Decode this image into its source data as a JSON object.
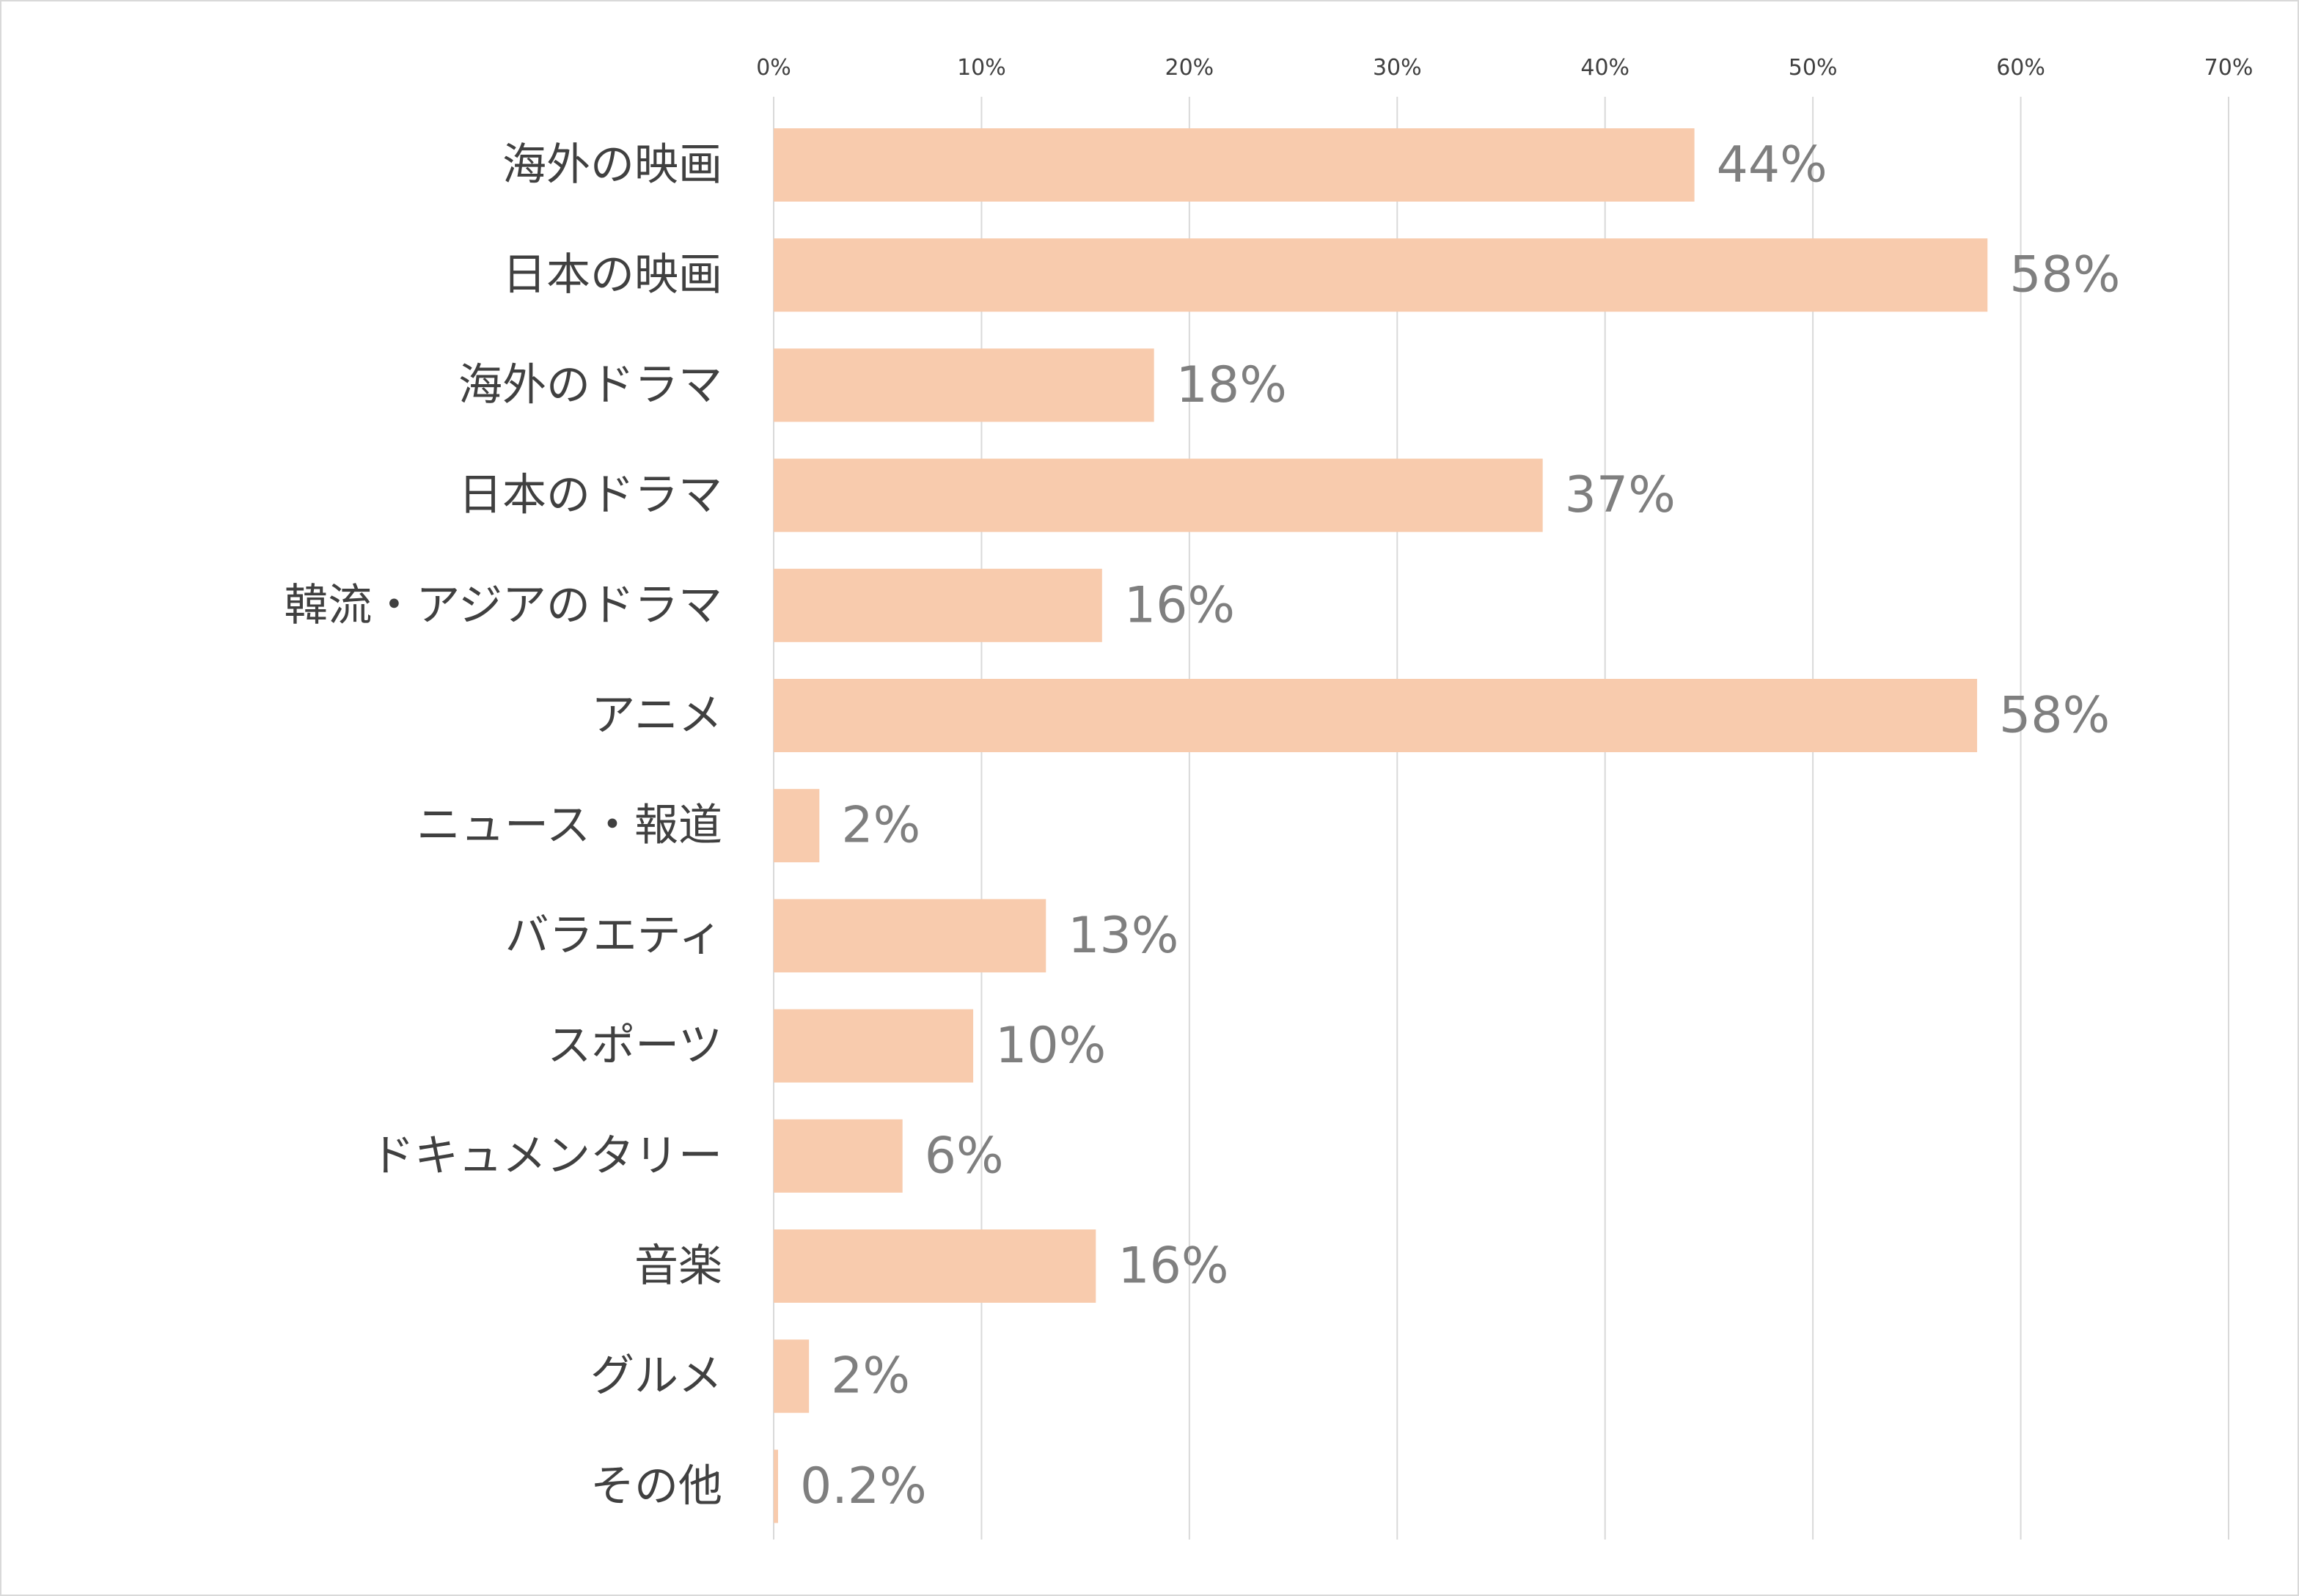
{
  "colors": {
    "bar": "#f8cbad",
    "grid": "#d9d9d9",
    "category_text": "#404040",
    "value_text": "#7f7f7f",
    "border": "#d9d9d9"
  },
  "chart_data": {
    "type": "bar",
    "orientation": "horizontal",
    "title": "",
    "xlabel": "",
    "ylabel": "",
    "xlim": [
      0,
      70
    ],
    "x_ticks": [
      "0%",
      "10%",
      "20%",
      "30%",
      "40%",
      "50%",
      "60%",
      "70%"
    ],
    "x_axis_position": "top",
    "grid": true,
    "legend": "none",
    "categories": [
      "海外の映画",
      "日本の映画",
      "海外のドラマ",
      "日本のドラマ",
      "韓流・アジアのドラマ",
      "アニメ",
      "ニュース・報道",
      "バラエティ",
      "スポーツ",
      "ドキュメンタリー",
      "音楽",
      "グルメ",
      "その他"
    ],
    "values": [
      44.3,
      58.4,
      18.3,
      37.0,
      15.8,
      57.9,
      2.2,
      13.1,
      9.6,
      6.2,
      15.5,
      1.7,
      0.2
    ],
    "data_labels": [
      "44%",
      "58%",
      "18%",
      "37%",
      "16%",
      "58%",
      "2%",
      "13%",
      "10%",
      "6%",
      "16%",
      "2%",
      "0.2%"
    ]
  }
}
